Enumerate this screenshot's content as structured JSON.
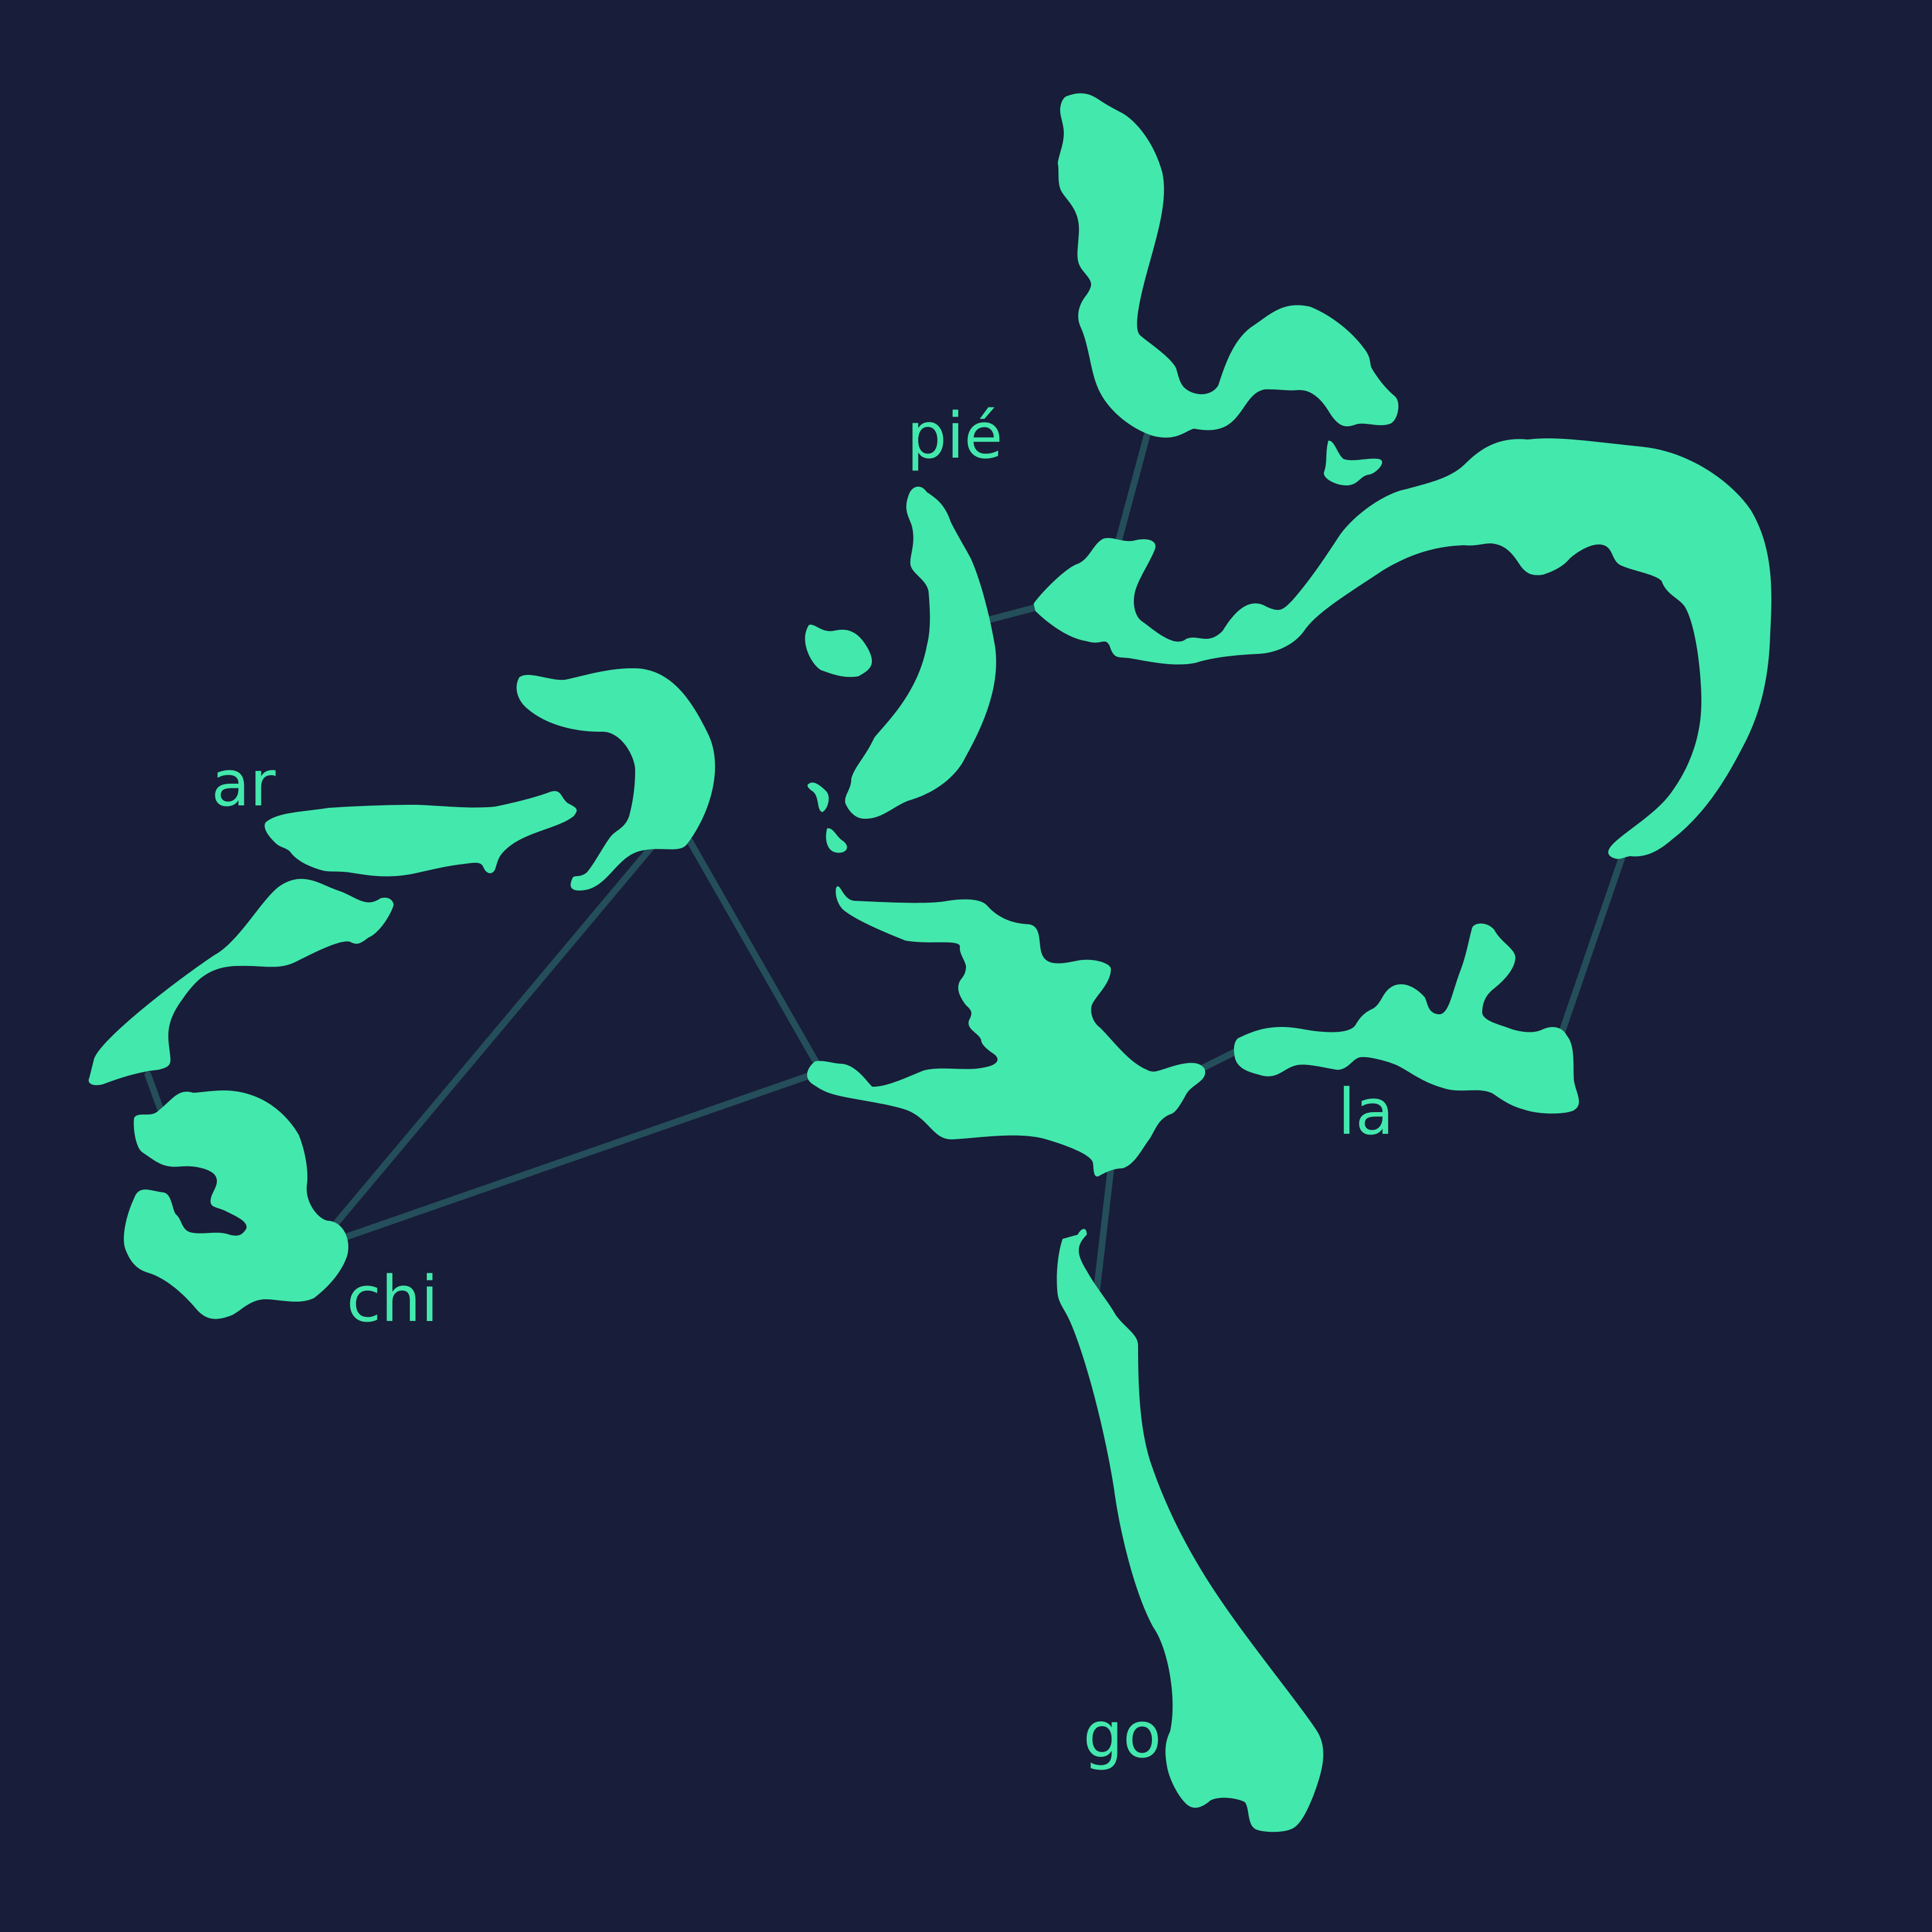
{
  "colors": {
    "background": "#181d39",
    "land": "#43e8ac",
    "connector": "#244e5a"
  },
  "labels": {
    "pie": "pié",
    "ar": "ar",
    "chi": "chi",
    "la": "la",
    "go": "go"
  }
}
